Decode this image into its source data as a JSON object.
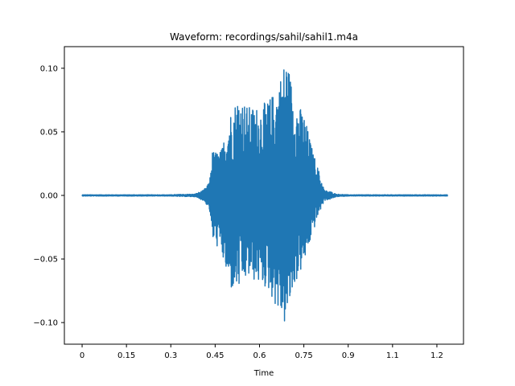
{
  "chart_data": {
    "type": "line",
    "title": "Waveform: recordings/sahil/sahil1.m4a",
    "xlabel": "Time",
    "ylabel": "",
    "xlim": [
      -0.06,
      1.29
    ],
    "ylim": [
      -0.117,
      0.117
    ],
    "x_ticks": [
      0,
      0.15,
      0.3,
      0.45,
      0.6,
      0.75,
      0.9,
      1.05,
      1.2
    ],
    "x_tick_labels": [
      "0",
      "0.15",
      "0.3",
      "0.45",
      "0.6",
      "0.75",
      "0.9",
      "1.1",
      "1.2"
    ],
    "y_ticks": [
      -0.1,
      -0.05,
      0.0,
      0.05,
      0.1
    ],
    "y_tick_labels": [
      "−0.10",
      "−0.05",
      "0.00",
      "0.05",
      "0.10"
    ],
    "grid": false,
    "series": [
      {
        "color": "#1f77b4",
        "duration": 1.236,
        "envelope": {
          "x": [
            0,
            0.3,
            0.33,
            0.38,
            0.41,
            0.43,
            0.44,
            0.47,
            0.5,
            0.53,
            0.56,
            0.6,
            0.63,
            0.66,
            0.69,
            0.7,
            0.72,
            0.75,
            0.78,
            0.8,
            0.82,
            0.84,
            0.86,
            0.9,
            1.236
          ],
          "upper": [
            0.0005,
            0.0005,
            0.0008,
            0.001,
            0.004,
            0.01,
            0.035,
            0.035,
            0.065,
            0.08,
            0.07,
            0.07,
            0.075,
            0.085,
            0.11,
            0.1,
            0.075,
            0.065,
            0.035,
            0.02,
            0.004,
            0.003,
            0.001,
            0.0005,
            0.0005
          ],
          "lower": [
            -0.0005,
            -0.0005,
            -0.0008,
            -0.001,
            -0.004,
            -0.01,
            -0.035,
            -0.045,
            -0.075,
            -0.075,
            -0.065,
            -0.07,
            -0.075,
            -0.09,
            -0.105,
            -0.09,
            -0.07,
            -0.055,
            -0.03,
            -0.015,
            -0.004,
            -0.003,
            -0.001,
            -0.0005,
            -0.0005
          ]
        }
      }
    ]
  }
}
